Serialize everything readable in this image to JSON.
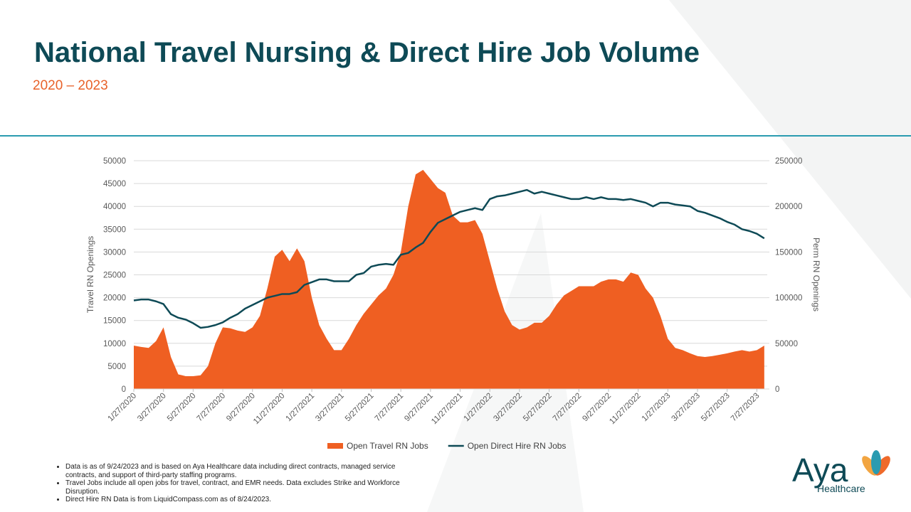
{
  "header": {
    "title": "National Travel Nursing & Direct Hire Job Volume",
    "subtitle": "2020  – 2023"
  },
  "chart_data": {
    "type": "area-line",
    "categories": [
      "1/27/2020",
      null,
      null,
      null,
      "3/27/2020",
      null,
      null,
      null,
      "5/27/2020",
      null,
      null,
      null,
      "7/27/2020",
      null,
      null,
      null,
      "9/27/2020",
      null,
      null,
      null,
      "11/27/2020",
      null,
      null,
      null,
      "1/27/2021",
      null,
      null,
      null,
      "3/27/2021",
      null,
      null,
      null,
      "5/27/2021",
      null,
      null,
      null,
      "7/27/2021",
      null,
      null,
      null,
      "9/27/2021",
      null,
      null,
      null,
      "11/27/2021",
      null,
      null,
      null,
      "1/27/2022",
      null,
      null,
      null,
      "3/27/2022",
      null,
      null,
      null,
      "5/27/2022",
      null,
      null,
      null,
      "7/27/2022",
      null,
      null,
      null,
      "9/27/2022",
      null,
      null,
      null,
      "11/27/2022",
      null,
      null,
      null,
      "1/27/2023",
      null,
      null,
      null,
      "3/27/2023",
      null,
      null,
      null,
      "5/27/2023",
      null,
      null,
      null,
      "7/27/2023",
      null
    ],
    "series": [
      {
        "name": "Open Travel RN Jobs",
        "color": "#ef5f22",
        "values": [
          9500,
          9200,
          9000,
          10500,
          13500,
          7000,
          3200,
          2800,
          2800,
          3000,
          5000,
          10000,
          13500,
          13300,
          12800,
          12500,
          13500,
          16000,
          22000,
          29000,
          30500,
          28000,
          30800,
          28000,
          20000,
          14000,
          11000,
          8500,
          8500,
          11000,
          14000,
          16500,
          18500,
          20500,
          22000,
          25000,
          30000,
          40000,
          47000,
          48000,
          46000,
          44000,
          43000,
          38000,
          36500,
          36500,
          37000,
          34000,
          28000,
          22000,
          17000,
          14000,
          13000,
          13500,
          14500,
          14500,
          16000,
          18500,
          20500,
          21500,
          22500,
          22500,
          22500,
          23500,
          24000,
          24000,
          23500,
          25500,
          25000,
          22000,
          20000,
          16000,
          11000,
          9000,
          8500,
          7800,
          7200,
          7000,
          7200,
          7500,
          7800,
          8200,
          8500,
          8200,
          8500,
          9500
        ]
      },
      {
        "name": "Open Direct Hire RN Jobs",
        "color": "#0e4a56",
        "axis": "y2",
        "values": [
          97000,
          98000,
          98000,
          96000,
          93000,
          82000,
          78000,
          76000,
          72000,
          67000,
          68000,
          70000,
          73000,
          78000,
          82000,
          88000,
          92000,
          96000,
          100000,
          102000,
          104000,
          104000,
          106000,
          114000,
          117000,
          120000,
          120000,
          118000,
          118000,
          118000,
          125000,
          127000,
          134000,
          136000,
          137000,
          136000,
          147000,
          149000,
          155000,
          160000,
          172000,
          182000,
          186000,
          190000,
          194000,
          196000,
          198000,
          196000,
          208000,
          211000,
          212000,
          214000,
          216000,
          218000,
          214000,
          216000,
          214000,
          212000,
          210000,
          208000,
          208000,
          210000,
          208000,
          210000,
          208000,
          208000,
          207000,
          208000,
          206000,
          204000,
          200000,
          204000,
          204000,
          202000,
          201000,
          200000,
          195000,
          193000,
          190000,
          187000,
          183000,
          180000,
          175000,
          173000,
          170000,
          165000
        ]
      }
    ],
    "ylabel": "Travel RN Openings",
    "y2label": "Perm RN Openings",
    "ylim": [
      0,
      50000
    ],
    "yticks": [
      0,
      5000,
      10000,
      15000,
      20000,
      25000,
      30000,
      35000,
      40000,
      45000,
      50000
    ],
    "y2lim": [
      0,
      250000
    ],
    "y2ticks": [
      0,
      50000,
      100000,
      150000,
      200000,
      250000
    ],
    "grid": true,
    "legend": "bottom"
  },
  "footnotes": [
    "Data is as of 9/24/2023 and is based on Aya Healthcare data including direct contracts, managed service contracts, and support of third-party staffing programs.",
    "Travel Jobs include all open jobs for travel, contract, and EMR needs. Data excludes Strike and Workforce Disruption.",
    "Direct Hire RN Data is from LiquidCompass.com as of 8/24/2023."
  ],
  "logo": {
    "name": "Aya",
    "tagline": "Healthcare"
  }
}
